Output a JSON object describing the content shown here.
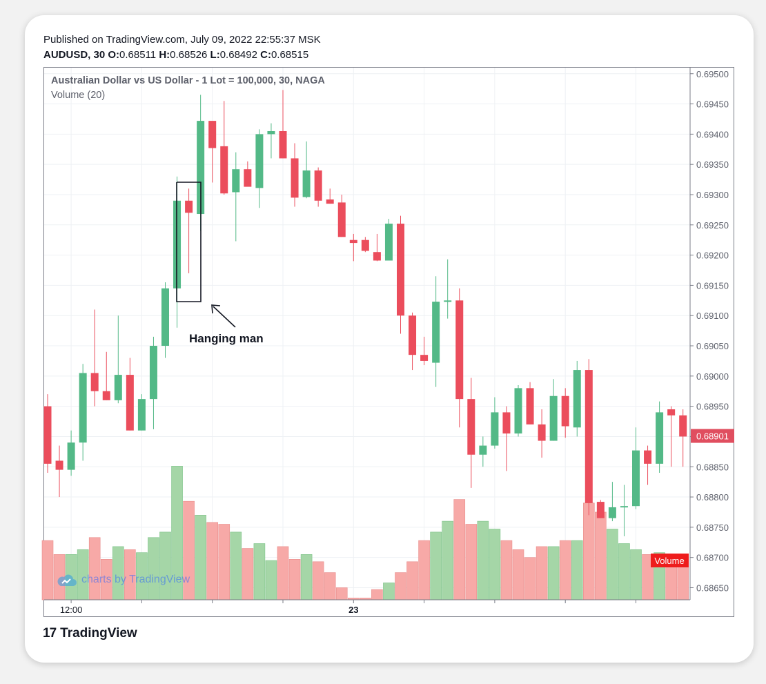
{
  "header": {
    "published": "Published on TradingView.com, July 09, 2022 22:55:37 MSK",
    "symbol": "AUDUSD, 30",
    "o_label": "O:",
    "o_value": "0.68511",
    "h_label": "H:",
    "h_value": "0.68526",
    "l_label": "L:",
    "l_value": "0.68492",
    "c_label": "C:",
    "c_value": "0.68515"
  },
  "legend": {
    "instrument": "Australian Dollar vs US Dollar - 1 Lot = 100,000, 30, NAGA",
    "volume": "Volume (20)"
  },
  "watermark": "charts by TradingView",
  "footer": {
    "brand_mark": "17",
    "brand_text": "TradingView"
  },
  "annotation": {
    "text": "Hanging man"
  },
  "price_tag": {
    "value": "0.68901",
    "color": "#e04e5f"
  },
  "volume_tag": {
    "text": "Volume",
    "color": "#ee1c1c"
  },
  "colors": {
    "up": "#53b987",
    "down": "#eb4d5c",
    "vol_up": "#a5d6a7",
    "vol_down": "#f7a9a7",
    "grid": "#eef1f4"
  },
  "chart_data": {
    "type": "candlestick",
    "y_axis": {
      "min": 0.6863,
      "max": 0.6951,
      "ticks": [
        "0.69500",
        "0.69450",
        "0.69400",
        "0.69350",
        "0.69300",
        "0.69250",
        "0.69200",
        "0.69150",
        "0.69100",
        "0.69050",
        "0.69000",
        "0.68950",
        "0.68900",
        "0.68850",
        "0.68800",
        "0.68750",
        "0.68700",
        "0.68650"
      ]
    },
    "x_axis": {
      "labels": [
        {
          "text": "12:00",
          "bold": false,
          "index": 2
        },
        {
          "text": "23",
          "bold": true,
          "index": 26
        }
      ]
    },
    "candles": [
      {
        "o": 0.6895,
        "h": 0.6897,
        "l": 0.6884,
        "c": 0.68855
      },
      {
        "o": 0.6886,
        "h": 0.68885,
        "l": 0.688,
        "c": 0.68845
      },
      {
        "o": 0.68845,
        "h": 0.6891,
        "l": 0.68835,
        "c": 0.6889
      },
      {
        "o": 0.6889,
        "h": 0.6902,
        "l": 0.6886,
        "c": 0.69005
      },
      {
        "o": 0.69005,
        "h": 0.6911,
        "l": 0.6895,
        "c": 0.68975
      },
      {
        "o": 0.68975,
        "h": 0.6904,
        "l": 0.6896,
        "c": 0.6896
      },
      {
        "o": 0.6896,
        "h": 0.691,
        "l": 0.68955,
        "c": 0.69002
      },
      {
        "o": 0.69002,
        "h": 0.6903,
        "l": 0.6891,
        "c": 0.6891
      },
      {
        "o": 0.6891,
        "h": 0.6897,
        "l": 0.6891,
        "c": 0.68962
      },
      {
        "o": 0.68962,
        "h": 0.69065,
        "l": 0.68912,
        "c": 0.6905
      },
      {
        "o": 0.6905,
        "h": 0.69155,
        "l": 0.6903,
        "c": 0.69145
      },
      {
        "o": 0.69145,
        "h": 0.6933,
        "l": 0.6908,
        "c": 0.6929
      },
      {
        "o": 0.6929,
        "h": 0.6931,
        "l": 0.6917,
        "c": 0.6927
      },
      {
        "o": 0.69268,
        "h": 0.69465,
        "l": 0.6924,
        "c": 0.69422
      },
      {
        "o": 0.69422,
        "h": 0.6942,
        "l": 0.6932,
        "c": 0.69377
      },
      {
        "o": 0.6938,
        "h": 0.69455,
        "l": 0.693,
        "c": 0.69302
      },
      {
        "o": 0.69304,
        "h": 0.6937,
        "l": 0.69223,
        "c": 0.69342
      },
      {
        "o": 0.69342,
        "h": 0.69355,
        "l": 0.69315,
        "c": 0.69313
      },
      {
        "o": 0.69311,
        "h": 0.69408,
        "l": 0.69278,
        "c": 0.694
      },
      {
        "o": 0.694,
        "h": 0.69418,
        "l": 0.6936,
        "c": 0.69405
      },
      {
        "o": 0.69405,
        "h": 0.69473,
        "l": 0.6936,
        "c": 0.6936
      },
      {
        "o": 0.6936,
        "h": 0.69385,
        "l": 0.6928,
        "c": 0.69295
      },
      {
        "o": 0.69296,
        "h": 0.69388,
        "l": 0.69294,
        "c": 0.6934
      },
      {
        "o": 0.6934,
        "h": 0.69345,
        "l": 0.6928,
        "c": 0.6929
      },
      {
        "o": 0.69292,
        "h": 0.6931,
        "l": 0.69285,
        "c": 0.69285
      },
      {
        "o": 0.69287,
        "h": 0.693,
        "l": 0.6923,
        "c": 0.6923
      },
      {
        "o": 0.69225,
        "h": 0.69235,
        "l": 0.6919,
        "c": 0.6922
      },
      {
        "o": 0.69225,
        "h": 0.6923,
        "l": 0.69205,
        "c": 0.69207
      },
      {
        "o": 0.69205,
        "h": 0.69235,
        "l": 0.6919,
        "c": 0.69191
      },
      {
        "o": 0.69191,
        "h": 0.6926,
        "l": 0.69191,
        "c": 0.69252
      },
      {
        "o": 0.69252,
        "h": 0.69265,
        "l": 0.6907,
        "c": 0.691
      },
      {
        "o": 0.691,
        "h": 0.69105,
        "l": 0.6901,
        "c": 0.69035
      },
      {
        "o": 0.69035,
        "h": 0.69065,
        "l": 0.69018,
        "c": 0.69025
      },
      {
        "o": 0.69022,
        "h": 0.69165,
        "l": 0.68982,
        "c": 0.69123
      },
      {
        "o": 0.69123,
        "h": 0.69193,
        "l": 0.69095,
        "c": 0.69125
      },
      {
        "o": 0.69125,
        "h": 0.69145,
        "l": 0.68915,
        "c": 0.68962
      },
      {
        "o": 0.68962,
        "h": 0.68997,
        "l": 0.68815,
        "c": 0.6887
      },
      {
        "o": 0.6887,
        "h": 0.689,
        "l": 0.6885,
        "c": 0.68885
      },
      {
        "o": 0.68885,
        "h": 0.68965,
        "l": 0.6888,
        "c": 0.6894
      },
      {
        "o": 0.6894,
        "h": 0.6895,
        "l": 0.68843,
        "c": 0.68905
      },
      {
        "o": 0.68905,
        "h": 0.68985,
        "l": 0.689,
        "c": 0.6898
      },
      {
        "o": 0.6898,
        "h": 0.6899,
        "l": 0.6892,
        "c": 0.6892
      },
      {
        "o": 0.6892,
        "h": 0.68945,
        "l": 0.68865,
        "c": 0.68893
      },
      {
        "o": 0.68893,
        "h": 0.68995,
        "l": 0.68893,
        "c": 0.68967
      },
      {
        "o": 0.68967,
        "h": 0.6898,
        "l": 0.68898,
        "c": 0.68917
      },
      {
        "o": 0.68915,
        "h": 0.69025,
        "l": 0.689,
        "c": 0.6901
      },
      {
        "o": 0.6901,
        "h": 0.69028,
        "l": 0.6877,
        "c": 0.6879
      },
      {
        "o": 0.68792,
        "h": 0.68795,
        "l": 0.68765,
        "c": 0.68765
      },
      {
        "o": 0.68765,
        "h": 0.68825,
        "l": 0.6876,
        "c": 0.68783
      },
      {
        "o": 0.68785,
        "h": 0.6882,
        "l": 0.68735,
        "c": 0.68785
      },
      {
        "o": 0.68785,
        "h": 0.68915,
        "l": 0.6878,
        "c": 0.68877
      },
      {
        "o": 0.68877,
        "h": 0.68885,
        "l": 0.6882,
        "c": 0.68855
      },
      {
        "o": 0.68855,
        "h": 0.68958,
        "l": 0.6884,
        "c": 0.6894
      },
      {
        "o": 0.68945,
        "h": 0.6895,
        "l": 0.6885,
        "c": 0.68935
      },
      {
        "o": 0.68935,
        "h": 0.68945,
        "l": 0.6885,
        "c": 0.689
      }
    ],
    "volume": [
      {
        "v": 0.68728,
        "up": false
      },
      {
        "v": 0.68705,
        "up": false
      },
      {
        "v": 0.68705,
        "up": true
      },
      {
        "v": 0.68713,
        "up": true
      },
      {
        "v": 0.68733,
        "up": false
      },
      {
        "v": 0.68697,
        "up": false
      },
      {
        "v": 0.68718,
        "up": true
      },
      {
        "v": 0.68713,
        "up": false
      },
      {
        "v": 0.68708,
        "up": true
      },
      {
        "v": 0.68733,
        "up": true
      },
      {
        "v": 0.68742,
        "up": true
      },
      {
        "v": 0.68851,
        "up": true
      },
      {
        "v": 0.68793,
        "up": false
      },
      {
        "v": 0.6877,
        "up": true
      },
      {
        "v": 0.68758,
        "up": false
      },
      {
        "v": 0.68755,
        "up": false
      },
      {
        "v": 0.68742,
        "up": true
      },
      {
        "v": 0.68715,
        "up": false
      },
      {
        "v": 0.68723,
        "up": true
      },
      {
        "v": 0.68695,
        "up": true
      },
      {
        "v": 0.68718,
        "up": false
      },
      {
        "v": 0.68697,
        "up": false
      },
      {
        "v": 0.68705,
        "up": true
      },
      {
        "v": 0.68693,
        "up": false
      },
      {
        "v": 0.68675,
        "up": false
      },
      {
        "v": 0.6865,
        "up": false
      },
      {
        "v": 0.68633,
        "up": false
      },
      {
        "v": 0.68633,
        "up": false
      },
      {
        "v": 0.68647,
        "up": false
      },
      {
        "v": 0.68658,
        "up": true
      },
      {
        "v": 0.68675,
        "up": false
      },
      {
        "v": 0.68693,
        "up": false
      },
      {
        "v": 0.68728,
        "up": false
      },
      {
        "v": 0.68742,
        "up": true
      },
      {
        "v": 0.6876,
        "up": true
      },
      {
        "v": 0.68796,
        "up": false
      },
      {
        "v": 0.68755,
        "up": false
      },
      {
        "v": 0.6876,
        "up": true
      },
      {
        "v": 0.68747,
        "up": true
      },
      {
        "v": 0.68728,
        "up": false
      },
      {
        "v": 0.68713,
        "up": false
      },
      {
        "v": 0.687,
        "up": false
      },
      {
        "v": 0.68718,
        "up": false
      },
      {
        "v": 0.68718,
        "up": true
      },
      {
        "v": 0.68728,
        "up": false
      },
      {
        "v": 0.68728,
        "up": true
      },
      {
        "v": 0.6879,
        "up": false
      },
      {
        "v": 0.68775,
        "up": false
      },
      {
        "v": 0.68747,
        "up": true
      },
      {
        "v": 0.68723,
        "up": true
      },
      {
        "v": 0.68713,
        "up": true
      },
      {
        "v": 0.68705,
        "up": false
      },
      {
        "v": 0.68708,
        "up": true
      },
      {
        "v": 0.68705,
        "up": false
      },
      {
        "v": 0.68705,
        "up": false
      }
    ]
  }
}
